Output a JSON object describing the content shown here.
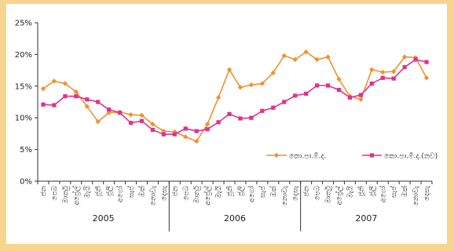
{
  "chart_data": {
    "type": "line",
    "ylim": [
      0,
      25
    ],
    "y_ticks": [
      "0%",
      "5%",
      "10%",
      "15%",
      "20%",
      "25%"
    ],
    "months": [
      "ජන",
      "පෙබ",
      "මාර්තු",
      "අප්‍රේල්",
      "මැයි",
      "ජූනි",
      "ජූලි",
      "අගෝ",
      "සැප්",
      "ඔක්",
      "නොවැ",
      "දෙසැ"
    ],
    "years": [
      "2005",
      "2006",
      "2007"
    ],
    "grid": false,
    "legend_position": "right",
    "series": [
      {
        "name": "කො.පා.මි.ද.",
        "color": "#f0922e",
        "marker": "diamond",
        "values": [
          14.6,
          15.8,
          15.4,
          14.1,
          11.8,
          9.4,
          10.8,
          10.9,
          10.5,
          10.4,
          9.0,
          7.9,
          7.8,
          7.0,
          6.3,
          9.0,
          13.2,
          17.6,
          14.8,
          15.2,
          15.4,
          17.1,
          19.8,
          19.2,
          20.4,
          19.2,
          19.6,
          16.1,
          13.4,
          12.9,
          17.6,
          17.2,
          17.3,
          19.6,
          19.5,
          16.3
        ]
      },
      {
        "name": "කො.පා.මි.ද.(නව)",
        "color": "#e0308f",
        "marker": "square",
        "values": [
          12.1,
          12.0,
          13.4,
          13.4,
          12.9,
          12.5,
          11.3,
          10.8,
          9.2,
          9.5,
          8.1,
          7.4,
          7.4,
          8.3,
          7.9,
          8.2,
          9.3,
          10.6,
          9.9,
          10.0,
          11.1,
          11.6,
          12.5,
          13.5,
          13.8,
          15.1,
          15.1,
          14.4,
          13.2,
          13.6,
          15.4,
          16.3,
          16.2,
          18.0,
          19.2,
          18.8
        ]
      }
    ]
  }
}
